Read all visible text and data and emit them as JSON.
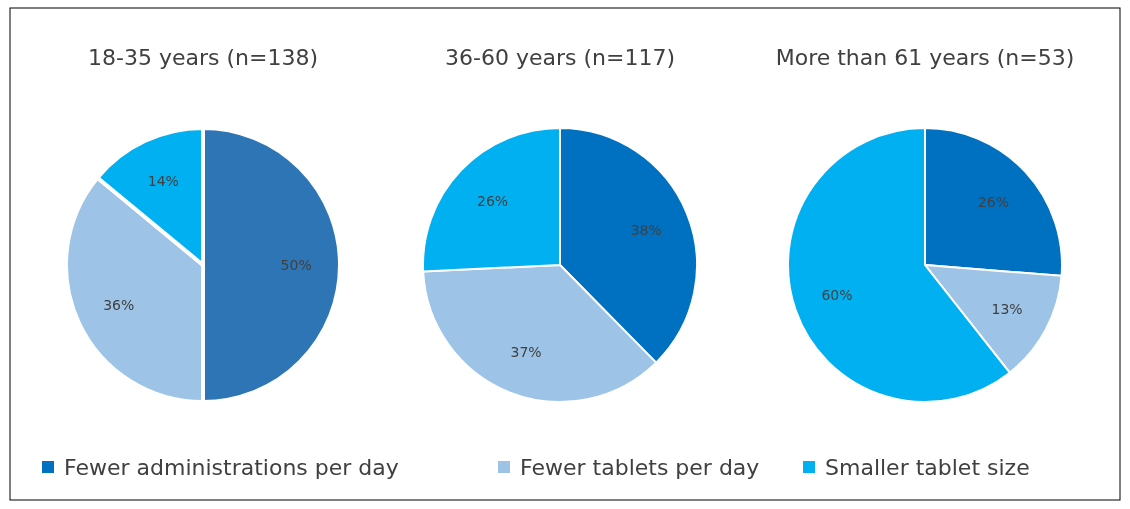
{
  "chart_data": [
    {
      "type": "pie",
      "title": "18-35 years (n=138)",
      "categories": [
        null,
        null,
        null
      ],
      "values": [
        50,
        36,
        14
      ],
      "value_labels": [
        "50%",
        "36%",
        "14%"
      ],
      "colors": [
        "#2e75b6",
        "#9dc3e6",
        "#00b0f0"
      ]
    },
    {
      "type": "pie",
      "title": "36-60 years (n=117)",
      "categories": [
        "Fewer administrations per day",
        "Fewer tablets per day",
        "Smaller tablet size"
      ],
      "values": [
        38,
        37,
        26
      ],
      "value_labels": [
        "38%",
        "37%",
        "26%"
      ],
      "colors": [
        "#0070c0",
        "#9dc3e6",
        "#00b0f0"
      ],
      "legend": "bottom"
    },
    {
      "type": "pie",
      "title": "More than 61 years (n=53)",
      "categories": [
        null,
        null,
        null
      ],
      "values": [
        26,
        13,
        60
      ],
      "value_labels": [
        "26%",
        "13%",
        "60%"
      ],
      "colors": [
        "#0070c0",
        "#9dc3e6",
        "#00b0f0"
      ]
    }
  ]
}
